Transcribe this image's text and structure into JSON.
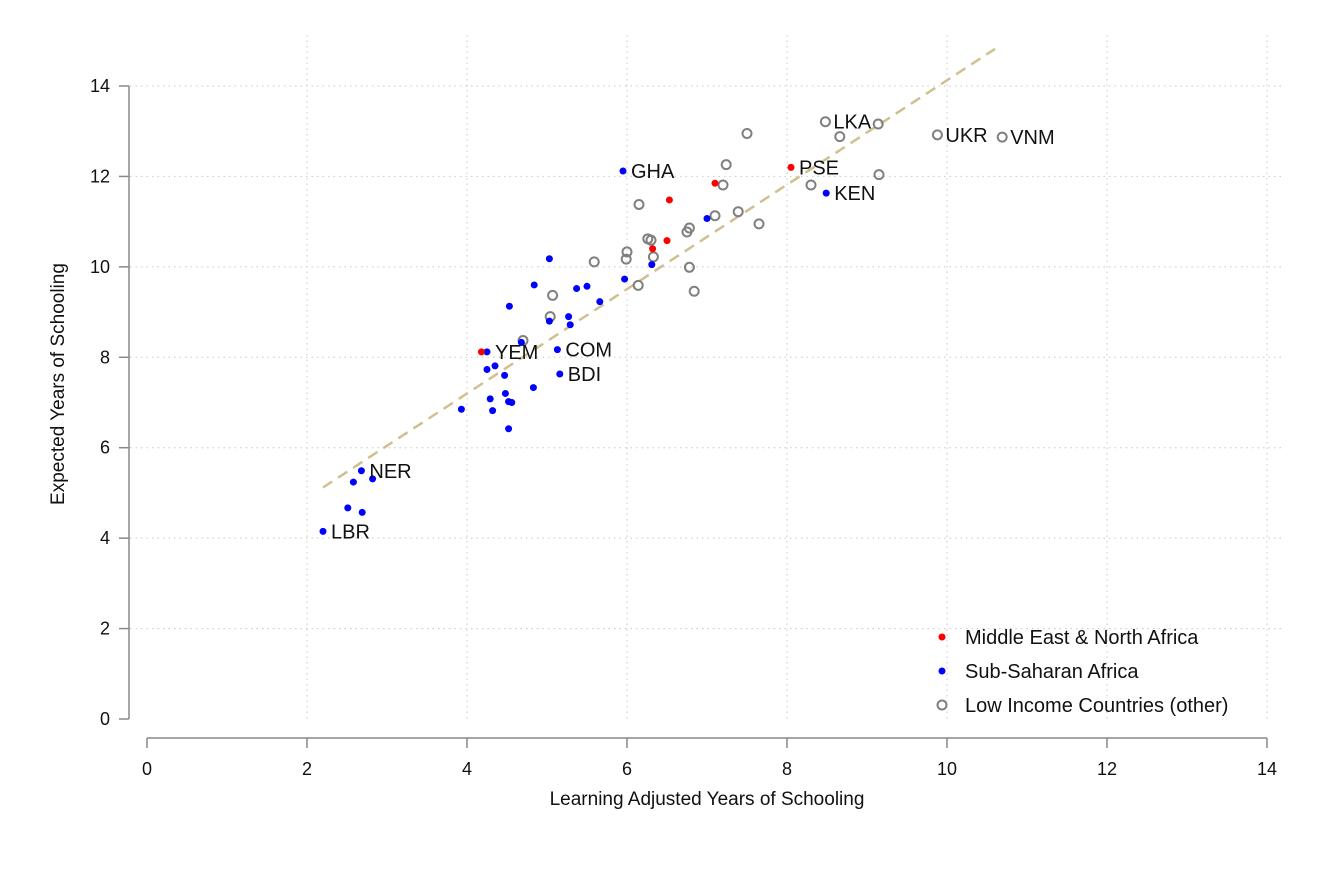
{
  "chart_data": {
    "type": "scatter",
    "title": "",
    "xlabel": "Learning Adjusted Years of Schooling",
    "ylabel": "Expected Years of Schooling",
    "xlim": [
      0,
      14
    ],
    "ylim": [
      0,
      14
    ],
    "xticks": [
      "0",
      "2",
      "4",
      "6",
      "8",
      "10",
      "12",
      "14"
    ],
    "yticks": [
      "0",
      "2",
      "4",
      "6",
      "8",
      "10",
      "12",
      "14"
    ],
    "grid": true,
    "legend_position": "bottom-right",
    "colors": {
      "mena": "#ff0000",
      "ssa": "#0000ff",
      "other": "#808080",
      "fit": "#cfc08f"
    },
    "fit_line": {
      "x": [
        2.2,
        10.6
      ],
      "y": [
        5.12,
        14.82
      ]
    },
    "series": [
      {
        "key": "mena",
        "name": "Middle East & North Africa",
        "marker": "filled",
        "points": [
          {
            "x": 4.18,
            "y": 8.12,
            "label": ""
          },
          {
            "x": 6.32,
            "y": 10.4,
            "label": ""
          },
          {
            "x": 6.5,
            "y": 10.58,
            "label": ""
          },
          {
            "x": 6.53,
            "y": 11.48,
            "label": ""
          },
          {
            "x": 7.1,
            "y": 11.85,
            "label": ""
          },
          {
            "x": 8.05,
            "y": 12.2,
            "label": "PSE"
          }
        ]
      },
      {
        "key": "ssa",
        "name": "Sub-Saharan Africa",
        "marker": "filled",
        "points": [
          {
            "x": 2.2,
            "y": 4.15,
            "label": "LBR"
          },
          {
            "x": 2.51,
            "y": 4.67,
            "label": ""
          },
          {
            "x": 2.58,
            "y": 5.24,
            "label": ""
          },
          {
            "x": 2.69,
            "y": 4.57,
            "label": ""
          },
          {
            "x": 2.68,
            "y": 5.49,
            "label": "NER"
          },
          {
            "x": 2.82,
            "y": 5.31,
            "label": ""
          },
          {
            "x": 3.93,
            "y": 6.85,
            "label": ""
          },
          {
            "x": 4.25,
            "y": 7.73,
            "label": ""
          },
          {
            "x": 4.25,
            "y": 8.12,
            "label": "YEM"
          },
          {
            "x": 4.29,
            "y": 7.08,
            "label": ""
          },
          {
            "x": 4.32,
            "y": 6.82,
            "label": ""
          },
          {
            "x": 4.35,
            "y": 7.81,
            "label": ""
          },
          {
            "x": 4.47,
            "y": 7.6,
            "label": ""
          },
          {
            "x": 4.48,
            "y": 7.2,
            "label": ""
          },
          {
            "x": 4.52,
            "y": 7.02,
            "label": ""
          },
          {
            "x": 4.52,
            "y": 6.42,
            "label": ""
          },
          {
            "x": 4.53,
            "y": 9.13,
            "label": ""
          },
          {
            "x": 4.56,
            "y": 7.0,
            "label": ""
          },
          {
            "x": 4.68,
            "y": 8.33,
            "label": ""
          },
          {
            "x": 4.83,
            "y": 7.33,
            "label": ""
          },
          {
            "x": 4.84,
            "y": 9.6,
            "label": ""
          },
          {
            "x": 5.03,
            "y": 10.18,
            "label": ""
          },
          {
            "x": 5.03,
            "y": 8.8,
            "label": ""
          },
          {
            "x": 5.13,
            "y": 8.17,
            "label": "COM"
          },
          {
            "x": 5.16,
            "y": 7.63,
            "label": "BDI"
          },
          {
            "x": 5.27,
            "y": 8.9,
            "label": ""
          },
          {
            "x": 5.29,
            "y": 8.72,
            "label": ""
          },
          {
            "x": 5.37,
            "y": 9.52,
            "label": ""
          },
          {
            "x": 5.5,
            "y": 9.57,
            "label": ""
          },
          {
            "x": 5.66,
            "y": 9.23,
            "label": ""
          },
          {
            "x": 5.95,
            "y": 12.12,
            "label": "GHA"
          },
          {
            "x": 5.97,
            "y": 9.73,
            "label": ""
          },
          {
            "x": 6.31,
            "y": 10.05,
            "label": ""
          },
          {
            "x": 7.0,
            "y": 11.07,
            "label": ""
          },
          {
            "x": 8.49,
            "y": 11.63,
            "label": "KEN"
          }
        ]
      },
      {
        "key": "other",
        "name": "Low Income Countries (other)",
        "marker": "hollow",
        "points": [
          {
            "x": 4.7,
            "y": 8.37,
            "label": ""
          },
          {
            "x": 5.04,
            "y": 8.9,
            "label": ""
          },
          {
            "x": 5.07,
            "y": 9.37,
            "label": ""
          },
          {
            "x": 5.59,
            "y": 10.11,
            "label": ""
          },
          {
            "x": 5.99,
            "y": 10.17,
            "label": ""
          },
          {
            "x": 6.0,
            "y": 10.33,
            "label": ""
          },
          {
            "x": 6.14,
            "y": 9.59,
            "label": ""
          },
          {
            "x": 6.15,
            "y": 11.38,
            "label": ""
          },
          {
            "x": 6.26,
            "y": 10.62,
            "label": ""
          },
          {
            "x": 6.3,
            "y": 10.59,
            "label": ""
          },
          {
            "x": 6.33,
            "y": 10.22,
            "label": ""
          },
          {
            "x": 6.75,
            "y": 10.77,
            "label": ""
          },
          {
            "x": 6.78,
            "y": 10.86,
            "label": ""
          },
          {
            "x": 6.78,
            "y": 9.99,
            "label": ""
          },
          {
            "x": 6.84,
            "y": 9.46,
            "label": ""
          },
          {
            "x": 7.1,
            "y": 11.13,
            "label": ""
          },
          {
            "x": 7.2,
            "y": 11.81,
            "label": ""
          },
          {
            "x": 7.24,
            "y": 12.26,
            "label": ""
          },
          {
            "x": 7.39,
            "y": 11.22,
            "label": ""
          },
          {
            "x": 7.5,
            "y": 12.95,
            "label": ""
          },
          {
            "x": 7.65,
            "y": 10.95,
            "label": ""
          },
          {
            "x": 8.3,
            "y": 11.81,
            "label": ""
          },
          {
            "x": 8.48,
            "y": 13.21,
            "label": "LKA"
          },
          {
            "x": 8.66,
            "y": 12.88,
            "label": ""
          },
          {
            "x": 9.14,
            "y": 13.16,
            "label": ""
          },
          {
            "x": 9.15,
            "y": 12.04,
            "label": ""
          },
          {
            "x": 9.88,
            "y": 12.92,
            "label": "UKR"
          },
          {
            "x": 10.69,
            "y": 12.87,
            "label": "VNM"
          }
        ]
      }
    ]
  }
}
